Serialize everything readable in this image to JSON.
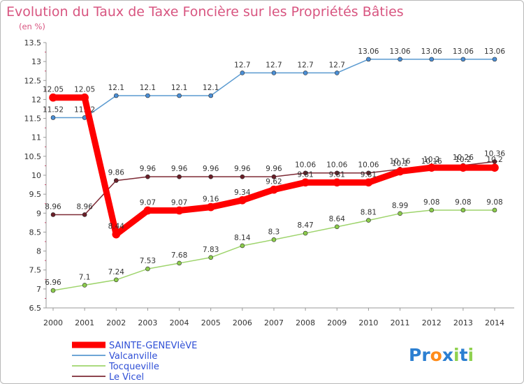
{
  "chart_data": {
    "type": "line",
    "title": "Evolution du Taux de Taxe Foncière sur les Propriétés Bâties",
    "subtitle": "(en %)",
    "xlabel": "",
    "ylabel": "",
    "x": [
      "2000",
      "2001",
      "2002",
      "2003",
      "2004",
      "2005",
      "2006",
      "2007",
      "2008",
      "2009",
      "2010",
      "2011",
      "2012",
      "2013",
      "2014"
    ],
    "ylim": [
      6.5,
      13.5
    ],
    "yticks": [
      "6.5",
      "7",
      "7.5",
      "8",
      "8.5",
      "9",
      "9.5",
      "10",
      "10.5",
      "11",
      "11.5",
      "12",
      "12.5",
      "13",
      "13.5"
    ],
    "grid": false,
    "legend_position": "bottom-left",
    "series": [
      {
        "name": "Valcanville",
        "color": "#5a9ad0",
        "point_color": "#4b8fd6",
        "values": [
          11.52,
          11.52,
          12.1,
          12.1,
          12.1,
          12.1,
          12.7,
          12.7,
          12.7,
          12.7,
          13.06,
          13.06,
          13.06,
          13.06,
          13.06
        ],
        "labels": [
          "11.52",
          "11.52",
          "12.1",
          "12.1",
          "12.1",
          "12.1",
          "12.7",
          "12.7",
          "12.7",
          "12.7",
          "13.06",
          "13.06",
          "13.06",
          "13.06",
          "13.06"
        ]
      },
      {
        "name": "Tocqueville",
        "color": "#9ed46c",
        "point_color": "#8ccc4c",
        "values": [
          6.96,
          7.1,
          7.24,
          7.53,
          7.68,
          7.83,
          8.14,
          8.3,
          8.47,
          8.64,
          8.81,
          8.99,
          9.08,
          9.08,
          9.08
        ],
        "labels": [
          "6.96",
          "7.1",
          "7.24",
          "7.53",
          "7.68",
          "7.83",
          "8.14",
          "8.3",
          "8.47",
          "8.64",
          "8.81",
          "8.99",
          "9.08",
          "9.08",
          "9.08"
        ]
      },
      {
        "name": "Le Vicel",
        "color": "#7d2a35",
        "point_color": "#6a1f28",
        "values": [
          8.96,
          8.96,
          9.86,
          9.96,
          9.96,
          9.96,
          9.96,
          9.96,
          10.06,
          10.06,
          10.06,
          10.16,
          10.16,
          10.26,
          10.36
        ],
        "labels": [
          "8.96",
          "8.96",
          "9.86",
          "9.96",
          "9.96",
          "9.96",
          "9.96",
          "9.96",
          "10.06",
          "10.06",
          "10.06",
          "10.16",
          "10.16",
          "10.26",
          "10.36"
        ]
      },
      {
        "name": "SAINTE-GENEVIèVE",
        "color": "#ff0000",
        "point_color": "#ff0000",
        "values": [
          12.05,
          12.05,
          8.44,
          9.07,
          9.07,
          9.16,
          9.34,
          9.62,
          9.81,
          9.81,
          9.81,
          10.1,
          10.2,
          10.2,
          10.2
        ],
        "labels": [
          "12.05",
          "12.05",
          "8.44",
          "9.07",
          "9.07",
          "9.16",
          "9.34",
          "9.62",
          "9.81",
          "9.81",
          "9.81",
          "10.1",
          "10.2",
          "10.2",
          "10.2"
        ]
      }
    ],
    "legend_order": [
      "SAINTE-GENEVIèVE",
      "Valcanville",
      "Tocqueville",
      "Le Vicel"
    ]
  },
  "logo": {
    "letters": [
      "P",
      "r",
      "o",
      "x",
      "i",
      "t",
      "i"
    ],
    "colors": [
      "#2c7fd1",
      "#2c7fd1",
      "#ff8c1a",
      "#2c7fd1",
      "#8fd14f",
      "#2c7fd1",
      "#8fd14f"
    ]
  }
}
